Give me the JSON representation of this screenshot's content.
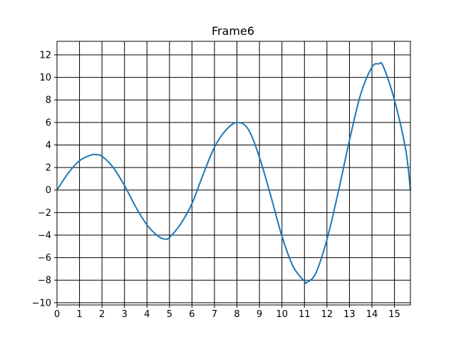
{
  "chart_data": {
    "type": "line",
    "title": "Frame6",
    "xlabel": "",
    "ylabel": "",
    "xlim": [
      0,
      15.71
    ],
    "ylim": [
      -10.2,
      13.2
    ],
    "grid": true,
    "x_ticks": [
      0,
      1,
      2,
      3,
      4,
      5,
      6,
      7,
      8,
      9,
      10,
      11,
      12,
      13,
      14,
      15
    ],
    "x_tick_labels": [
      "0",
      "1",
      "2",
      "3",
      "4",
      "5",
      "6",
      "7",
      "8",
      "9",
      "10",
      "11",
      "12",
      "13",
      "14",
      "15"
    ],
    "y_ticks": [
      -10,
      -8,
      -6,
      -4,
      -2,
      0,
      2,
      4,
      6,
      8,
      10,
      12
    ],
    "y_tick_labels": [
      "−10",
      "−8",
      "−6",
      "−4",
      "−2",
      "0",
      "2",
      "4",
      "6",
      "8",
      "10",
      "12"
    ],
    "series": [
      {
        "color": "#1f77b4",
        "x": [
          0,
          0.5,
          1,
          1.5,
          1.7,
          2,
          2.5,
          3,
          3.5,
          4,
          4.5,
          4.8,
          5,
          5.5,
          6,
          6.5,
          7,
          7.5,
          8,
          8.5,
          9,
          9.5,
          10,
          10.5,
          11,
          11.1,
          11.5,
          12,
          12.5,
          13,
          13.5,
          14,
          14.3,
          14.5,
          15,
          15.5,
          15.71
        ],
        "y": [
          0,
          1.5,
          2.6,
          3.1,
          3.15,
          3.0,
          2.0,
          0.4,
          -1.5,
          -3.1,
          -4.1,
          -4.35,
          -4.2,
          -3.0,
          -1.2,
          1.4,
          3.8,
          5.3,
          6.0,
          5.4,
          2.9,
          -0.5,
          -4.1,
          -6.8,
          -8.1,
          -8.2,
          -7.4,
          -4.4,
          -0.2,
          4.4,
          8.5,
          10.9,
          11.2,
          11.0,
          8.0,
          3.6,
          0
        ]
      }
    ]
  }
}
